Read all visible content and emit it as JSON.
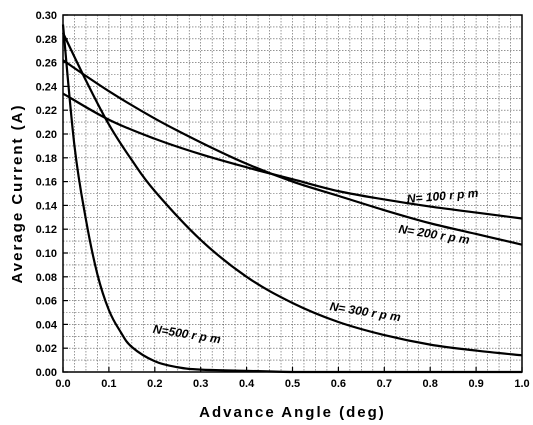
{
  "chart_data": {
    "type": "line",
    "title": "",
    "xlabel": "Advance Angle (deg)",
    "ylabel": "Average Current (A)",
    "xlim": [
      0.0,
      1.0
    ],
    "ylim": [
      0.0,
      0.3
    ],
    "xticks": [
      "0.0",
      "0.1",
      "0.2",
      "0.3",
      "0.4",
      "0.5",
      "0.6",
      "0.7",
      "0.8",
      "0.9",
      "1.0"
    ],
    "yticks": [
      "0.00",
      "0.02",
      "0.04",
      "0.06",
      "0.08",
      "0.10",
      "0.12",
      "0.14",
      "0.16",
      "0.18",
      "0.20",
      "0.22",
      "0.24",
      "0.26",
      "0.28",
      "0.30"
    ],
    "grid": true,
    "series": [
      {
        "name": "N= 100 r p m",
        "x": [
          0.0,
          0.1,
          0.2,
          0.3,
          0.4,
          0.5,
          0.6,
          0.7,
          0.8,
          0.9,
          1.0
        ],
        "y": [
          0.234,
          0.212,
          0.196,
          0.183,
          0.172,
          0.162,
          0.152,
          0.145,
          0.139,
          0.134,
          0.129
        ]
      },
      {
        "name": "N= 200 r p m",
        "x": [
          0.0,
          0.1,
          0.2,
          0.3,
          0.4,
          0.5,
          0.6,
          0.7,
          0.8,
          0.9,
          1.0
        ],
        "y": [
          0.262,
          0.236,
          0.213,
          0.193,
          0.175,
          0.16,
          0.148,
          0.136,
          0.125,
          0.116,
          0.107
        ]
      },
      {
        "name": "N= 300 r p m",
        "x": [
          0.0,
          0.05,
          0.1,
          0.15,
          0.2,
          0.3,
          0.4,
          0.5,
          0.6,
          0.7,
          0.8,
          0.9,
          1.0
        ],
        "y": [
          0.285,
          0.245,
          0.208,
          0.178,
          0.152,
          0.111,
          0.08,
          0.058,
          0.042,
          0.031,
          0.023,
          0.018,
          0.014
        ]
      },
      {
        "name": "N=500 r p m",
        "x": [
          0.0,
          0.025,
          0.05,
          0.075,
          0.1,
          0.125,
          0.15,
          0.2,
          0.25,
          0.3,
          0.4,
          0.5,
          0.6,
          0.8,
          1.0
        ],
        "y": [
          0.292,
          0.19,
          0.128,
          0.082,
          0.052,
          0.034,
          0.021,
          0.009,
          0.004,
          0.002,
          0.001,
          0.0,
          0.0,
          0.0,
          0.0
        ]
      }
    ]
  }
}
